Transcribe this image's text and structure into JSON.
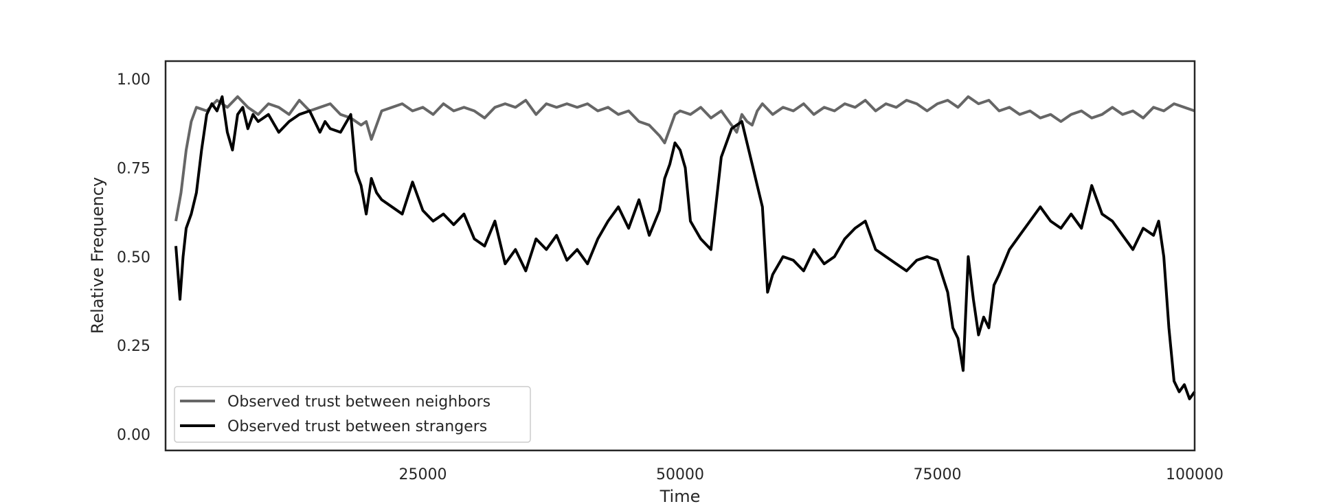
{
  "chart_data": {
    "type": "line",
    "title": "",
    "xlabel": "Time",
    "ylabel": "Relative Frequency",
    "xlim": [
      0,
      100000
    ],
    "ylim": [
      -0.045,
      1.05
    ],
    "xticks": [
      25000,
      50000,
      75000,
      100000
    ],
    "yticks": [
      0.0,
      0.25,
      0.5,
      0.75,
      1.0
    ],
    "xtick_labels": [
      "25000",
      "50000",
      "75000",
      "100000"
    ],
    "ytick_labels": [
      "0.00",
      "0.25",
      "0.50",
      "0.75",
      "1.00"
    ],
    "grid": false,
    "legend_position": "lower-left",
    "series": [
      {
        "name": "Observed trust between neighbors",
        "color": "#666666",
        "x": [
          1000,
          1500,
          2000,
          2500,
          3000,
          4000,
          5000,
          6000,
          7000,
          8000,
          9000,
          10000,
          11000,
          12000,
          13000,
          14000,
          15000,
          16000,
          17000,
          18000,
          19000,
          19500,
          20000,
          21000,
          22000,
          23000,
          24000,
          25000,
          26000,
          27000,
          28000,
          29000,
          30000,
          31000,
          32000,
          33000,
          34000,
          35000,
          36000,
          37000,
          38000,
          39000,
          40000,
          41000,
          42000,
          43000,
          44000,
          45000,
          46000,
          47000,
          48000,
          48500,
          49000,
          49500,
          50000,
          51000,
          52000,
          53000,
          54000,
          55000,
          55500,
          56000,
          56500,
          57000,
          57500,
          58000,
          59000,
          60000,
          61000,
          62000,
          63000,
          64000,
          65000,
          66000,
          67000,
          68000,
          69000,
          70000,
          71000,
          72000,
          73000,
          74000,
          75000,
          76000,
          77000,
          78000,
          79000,
          80000,
          81000,
          82000,
          83000,
          84000,
          85000,
          86000,
          87000,
          88000,
          89000,
          90000,
          91000,
          92000,
          93000,
          94000,
          95000,
          96000,
          97000,
          98000,
          99000,
          100000
        ],
        "y": [
          0.6,
          0.68,
          0.8,
          0.88,
          0.92,
          0.91,
          0.94,
          0.92,
          0.95,
          0.92,
          0.9,
          0.93,
          0.92,
          0.9,
          0.94,
          0.91,
          0.92,
          0.93,
          0.9,
          0.89,
          0.87,
          0.88,
          0.83,
          0.91,
          0.92,
          0.93,
          0.91,
          0.92,
          0.9,
          0.93,
          0.91,
          0.92,
          0.91,
          0.89,
          0.92,
          0.93,
          0.92,
          0.94,
          0.9,
          0.93,
          0.92,
          0.93,
          0.92,
          0.93,
          0.91,
          0.92,
          0.9,
          0.91,
          0.88,
          0.87,
          0.84,
          0.82,
          0.86,
          0.9,
          0.91,
          0.9,
          0.92,
          0.89,
          0.91,
          0.87,
          0.85,
          0.9,
          0.88,
          0.87,
          0.91,
          0.93,
          0.9,
          0.92,
          0.91,
          0.93,
          0.9,
          0.92,
          0.91,
          0.93,
          0.92,
          0.94,
          0.91,
          0.93,
          0.92,
          0.94,
          0.93,
          0.91,
          0.93,
          0.94,
          0.92,
          0.95,
          0.93,
          0.94,
          0.91,
          0.92,
          0.9,
          0.91,
          0.89,
          0.9,
          0.88,
          0.9,
          0.91,
          0.89,
          0.9,
          0.92,
          0.9,
          0.91,
          0.89,
          0.92,
          0.91,
          0.93,
          0.92,
          0.91
        ]
      },
      {
        "name": "Observed trust between strangers",
        "color": "#000000",
        "x": [
          1000,
          1400,
          1700,
          2000,
          2500,
          3000,
          3500,
          4000,
          4500,
          5000,
          5500,
          6000,
          6500,
          7000,
          7500,
          8000,
          8500,
          9000,
          10000,
          11000,
          12000,
          13000,
          14000,
          15000,
          15500,
          16000,
          17000,
          18000,
          18500,
          19000,
          19500,
          20000,
          20500,
          21000,
          22000,
          23000,
          24000,
          25000,
          26000,
          27000,
          28000,
          29000,
          30000,
          31000,
          32000,
          33000,
          34000,
          35000,
          36000,
          37000,
          38000,
          39000,
          40000,
          41000,
          42000,
          43000,
          44000,
          45000,
          46000,
          47000,
          48000,
          48500,
          49000,
          49500,
          50000,
          50500,
          51000,
          52000,
          53000,
          54000,
          55000,
          56000,
          56500,
          57000,
          57500,
          58000,
          58500,
          59000,
          60000,
          61000,
          62000,
          63000,
          64000,
          65000,
          66000,
          67000,
          68000,
          69000,
          70000,
          71000,
          72000,
          73000,
          74000,
          75000,
          76000,
          76500,
          77000,
          77500,
          78000,
          78500,
          79000,
          79500,
          80000,
          80500,
          81000,
          82000,
          83000,
          84000,
          85000,
          86000,
          87000,
          88000,
          89000,
          90000,
          91000,
          92000,
          93000,
          94000,
          95000,
          96000,
          96500,
          97000,
          97500,
          98000,
          98500,
          99000,
          99500,
          100000
        ],
        "y": [
          0.53,
          0.38,
          0.5,
          0.58,
          0.62,
          0.68,
          0.8,
          0.9,
          0.93,
          0.91,
          0.95,
          0.85,
          0.8,
          0.9,
          0.92,
          0.86,
          0.9,
          0.88,
          0.9,
          0.85,
          0.88,
          0.9,
          0.91,
          0.85,
          0.88,
          0.86,
          0.85,
          0.9,
          0.74,
          0.7,
          0.62,
          0.72,
          0.68,
          0.66,
          0.64,
          0.62,
          0.71,
          0.63,
          0.6,
          0.62,
          0.59,
          0.62,
          0.55,
          0.53,
          0.6,
          0.48,
          0.52,
          0.46,
          0.55,
          0.52,
          0.56,
          0.49,
          0.52,
          0.48,
          0.55,
          0.6,
          0.64,
          0.58,
          0.66,
          0.56,
          0.63,
          0.72,
          0.76,
          0.82,
          0.8,
          0.75,
          0.6,
          0.55,
          0.52,
          0.78,
          0.86,
          0.88,
          0.82,
          0.76,
          0.7,
          0.64,
          0.4,
          0.45,
          0.5,
          0.49,
          0.46,
          0.52,
          0.48,
          0.5,
          0.55,
          0.58,
          0.6,
          0.52,
          0.5,
          0.48,
          0.46,
          0.49,
          0.5,
          0.49,
          0.4,
          0.3,
          0.27,
          0.18,
          0.5,
          0.38,
          0.28,
          0.33,
          0.3,
          0.42,
          0.45,
          0.52,
          0.56,
          0.6,
          0.64,
          0.6,
          0.58,
          0.62,
          0.58,
          0.7,
          0.62,
          0.6,
          0.56,
          0.52,
          0.58,
          0.56,
          0.6,
          0.5,
          0.3,
          0.15,
          0.12,
          0.14,
          0.1,
          0.12
        ]
      }
    ]
  }
}
